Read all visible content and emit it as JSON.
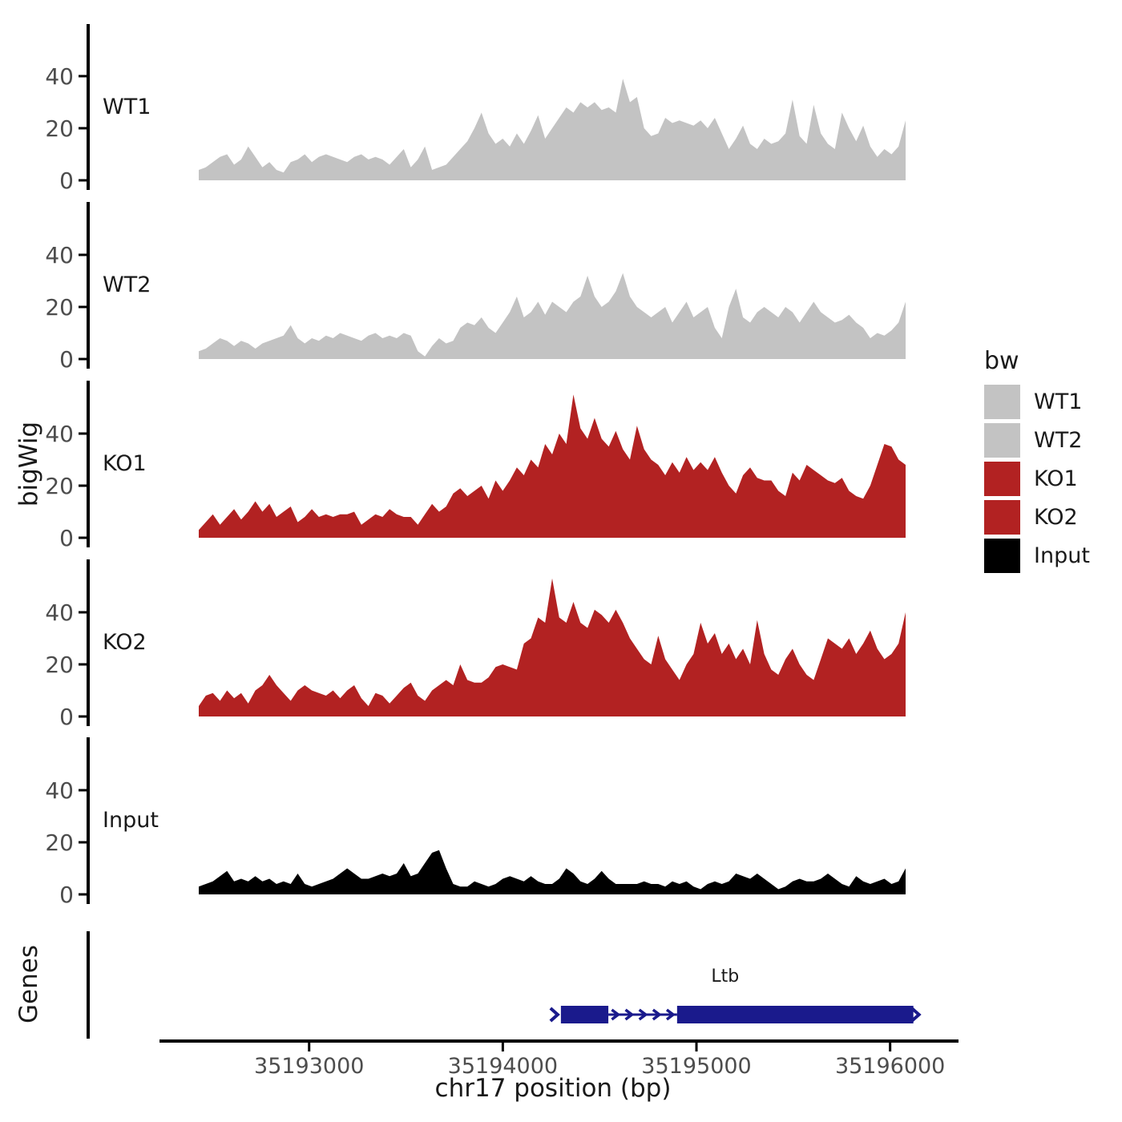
{
  "chart_data": {
    "type": "area",
    "title": "",
    "xlabel": "chr17 position (bp)",
    "ylabel": "bigWig",
    "x_start": 35192430,
    "x_end": 35196080,
    "x_ticks": [
      35193000,
      35194000,
      35195000,
      35196000
    ],
    "y_ticks": [
      0,
      20,
      40
    ],
    "ylim": [
      0,
      60
    ],
    "grid": false,
    "legend_position": "right",
    "legend": {
      "title": "bw",
      "entries": [
        {
          "label": "WT1",
          "color": "#c3c3c3"
        },
        {
          "label": "WT2",
          "color": "#c3c3c3"
        },
        {
          "label": "KO1",
          "color": "#b22222"
        },
        {
          "label": "KO2",
          "color": "#b22222"
        },
        {
          "label": "Input",
          "color": "#000000"
        }
      ]
    },
    "series": [
      {
        "name": "WT1",
        "color": "#c3c3c3",
        "values": [
          4,
          5,
          7,
          9,
          10,
          6,
          8,
          13,
          9,
          5,
          7,
          4,
          3,
          7,
          8,
          10,
          7,
          9,
          10,
          9,
          8,
          7,
          9,
          10,
          8,
          9,
          8,
          6,
          9,
          12,
          5,
          8,
          13,
          4,
          5,
          6,
          9,
          12,
          15,
          20,
          26,
          18,
          14,
          16,
          13,
          18,
          14,
          19,
          25,
          16,
          20,
          24,
          28,
          26,
          30,
          28,
          30,
          27,
          28,
          26,
          39,
          30,
          32,
          20,
          17,
          18,
          24,
          22,
          23,
          22,
          21,
          23,
          20,
          24,
          18,
          12,
          16,
          21,
          14,
          12,
          16,
          14,
          15,
          18,
          31,
          17,
          14,
          29,
          18,
          14,
          12,
          26,
          20,
          15,
          21,
          13,
          9,
          12,
          10,
          13,
          23
        ]
      },
      {
        "name": "WT2",
        "color": "#c3c3c3",
        "values": [
          3,
          4,
          6,
          8,
          7,
          5,
          7,
          6,
          4,
          6,
          7,
          8,
          9,
          13,
          8,
          6,
          8,
          7,
          9,
          8,
          10,
          9,
          8,
          7,
          9,
          10,
          8,
          9,
          8,
          10,
          9,
          3,
          1,
          5,
          8,
          6,
          7,
          12,
          14,
          13,
          16,
          12,
          10,
          14,
          18,
          24,
          16,
          18,
          22,
          17,
          22,
          20,
          18,
          22,
          24,
          32,
          24,
          20,
          22,
          26,
          33,
          24,
          20,
          18,
          16,
          18,
          20,
          14,
          18,
          22,
          16,
          18,
          20,
          12,
          8,
          20,
          27,
          16,
          14,
          18,
          20,
          18,
          16,
          20,
          18,
          14,
          18,
          22,
          18,
          16,
          14,
          15,
          17,
          14,
          12,
          8,
          10,
          9,
          11,
          14,
          22
        ]
      },
      {
        "name": "KO1",
        "color": "#b22222",
        "values": [
          3,
          6,
          9,
          5,
          8,
          11,
          7,
          10,
          14,
          10,
          13,
          8,
          10,
          12,
          6,
          8,
          11,
          8,
          9,
          8,
          9,
          9,
          10,
          5,
          7,
          9,
          8,
          11,
          9,
          8,
          8,
          5,
          9,
          13,
          10,
          12,
          17,
          19,
          16,
          18,
          20,
          15,
          22,
          18,
          22,
          27,
          24,
          30,
          27,
          36,
          32,
          40,
          36,
          55,
          42,
          38,
          46,
          38,
          35,
          41,
          34,
          30,
          43,
          34,
          30,
          28,
          24,
          29,
          25,
          31,
          26,
          29,
          26,
          31,
          25,
          20,
          17,
          24,
          27,
          23,
          22,
          22,
          18,
          16,
          25,
          22,
          28,
          26,
          24,
          22,
          21,
          23,
          18,
          16,
          15,
          20,
          28,
          36,
          35,
          30,
          28
        ]
      },
      {
        "name": "KO2",
        "color": "#b22222",
        "values": [
          4,
          8,
          9,
          6,
          10,
          7,
          9,
          5,
          10,
          12,
          16,
          12,
          9,
          6,
          10,
          12,
          10,
          9,
          8,
          10,
          7,
          10,
          12,
          7,
          4,
          9,
          8,
          5,
          8,
          11,
          13,
          8,
          6,
          10,
          12,
          14,
          12,
          20,
          14,
          13,
          13,
          15,
          19,
          20,
          19,
          18,
          28,
          30,
          38,
          36,
          53,
          38,
          36,
          44,
          36,
          34,
          41,
          39,
          36,
          41,
          36,
          30,
          26,
          22,
          20,
          31,
          22,
          18,
          14,
          20,
          24,
          36,
          28,
          32,
          24,
          28,
          22,
          26,
          20,
          37,
          24,
          18,
          16,
          22,
          26,
          20,
          16,
          14,
          22,
          30,
          28,
          26,
          30,
          24,
          28,
          33,
          26,
          22,
          24,
          28,
          40
        ]
      },
      {
        "name": "Input",
        "color": "#000000",
        "values": [
          3,
          4,
          5,
          7,
          9,
          5,
          6,
          5,
          7,
          5,
          6,
          4,
          5,
          4,
          8,
          4,
          3,
          4,
          5,
          6,
          8,
          10,
          8,
          6,
          6,
          7,
          8,
          7,
          8,
          12,
          7,
          8,
          12,
          16,
          17,
          10,
          4,
          3,
          3,
          5,
          4,
          3,
          4,
          6,
          7,
          6,
          5,
          7,
          5,
          4,
          4,
          6,
          10,
          8,
          5,
          4,
          6,
          9,
          6,
          4,
          4,
          4,
          4,
          5,
          4,
          4,
          3,
          5,
          4,
          5,
          3,
          2,
          4,
          5,
          4,
          5,
          8,
          7,
          6,
          8,
          6,
          4,
          2,
          3,
          5,
          6,
          5,
          5,
          6,
          8,
          6,
          4,
          3,
          7,
          5,
          4,
          5,
          6,
          4,
          5,
          10
        ]
      }
    ],
    "genes_track": {
      "label": "Genes",
      "gene": {
        "name": "Ltb",
        "strand": "+",
        "color": "#1a1a8c",
        "start": 35194300,
        "end": 35196120,
        "exons": [
          [
            35194300,
            35194545
          ],
          [
            35194900,
            35196120
          ]
        ],
        "intron": [
          35194545,
          35194900
        ],
        "intron_arrow_count": 5
      }
    }
  }
}
